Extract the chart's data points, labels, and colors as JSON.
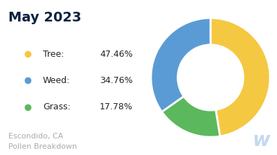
{
  "title": "May 2023",
  "title_color": "#0d2240",
  "title_fontsize": 14,
  "title_fontweight": "bold",
  "subtitle": "Escondido, CA\nPollen Breakdown",
  "subtitle_color": "#aaaaaa",
  "subtitle_fontsize": 8,
  "legend_labels": [
    "Tree:",
    "Weed:",
    "Grass:"
  ],
  "legend_values": [
    "47.46%",
    "34.76%",
    "17.78%"
  ],
  "values": [
    47.46,
    34.76,
    17.78
  ],
  "colors": [
    "#f5c842",
    "#5b9bd5",
    "#5cb85c"
  ],
  "background_color": "#ffffff",
  "donut_width": 0.45,
  "startangle": 90,
  "watermark_color": "#c5d8ef",
  "watermark_fontsize": 20
}
